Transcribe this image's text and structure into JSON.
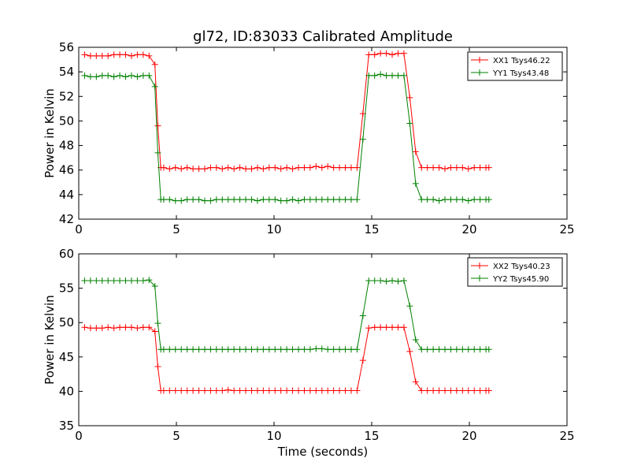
{
  "figure": {
    "title": "gl72, ID:83033 Calibrated Amplitude",
    "background": "#ffffff"
  },
  "chart_data": [
    {
      "type": "line",
      "title": "gl72, ID:83033 Calibrated Amplitude",
      "xlabel": "",
      "ylabel": "Power in Kelvin",
      "xlim": [
        0,
        25
      ],
      "ylim": [
        42,
        56
      ],
      "xticks": [
        "0",
        "5",
        "10",
        "15",
        "20",
        "25"
      ],
      "yticks": [
        "42",
        "44",
        "46",
        "48",
        "50",
        "52",
        "54",
        "56"
      ],
      "grid": false,
      "legend": "top-right",
      "x": [
        0.3,
        0.6,
        0.9,
        1.2,
        1.5,
        1.8,
        2.1,
        2.4,
        2.7,
        3.0,
        3.3,
        3.6,
        3.9,
        4.05,
        4.2,
        4.35,
        4.65,
        4.95,
        5.25,
        5.55,
        5.85,
        6.15,
        6.45,
        6.75,
        7.05,
        7.35,
        7.65,
        7.95,
        8.25,
        8.55,
        8.85,
        9.15,
        9.45,
        9.75,
        10.05,
        10.35,
        10.65,
        10.95,
        11.25,
        11.55,
        11.85,
        12.15,
        12.45,
        12.75,
        13.05,
        13.35,
        13.65,
        13.95,
        14.25,
        14.55,
        14.85,
        15.15,
        15.45,
        15.75,
        16.05,
        16.35,
        16.65,
        16.95,
        17.25,
        17.55,
        17.85,
        18.15,
        18.45,
        18.75,
        19.05,
        19.35,
        19.65,
        19.95,
        20.25,
        20.55,
        20.85,
        21.0
      ],
      "series": [
        {
          "name": "XX1 Tsys46.22",
          "color": "#ff0000",
          "values": [
            55.4,
            55.3,
            55.3,
            55.3,
            55.3,
            55.4,
            55.4,
            55.4,
            55.3,
            55.4,
            55.4,
            55.3,
            54.6,
            49.6,
            46.2,
            46.2,
            46.1,
            46.2,
            46.1,
            46.2,
            46.1,
            46.1,
            46.1,
            46.2,
            46.2,
            46.1,
            46.2,
            46.1,
            46.2,
            46.1,
            46.1,
            46.2,
            46.1,
            46.2,
            46.2,
            46.1,
            46.2,
            46.1,
            46.2,
            46.2,
            46.2,
            46.3,
            46.2,
            46.3,
            46.2,
            46.2,
            46.2,
            46.2,
            46.2,
            50.6,
            55.4,
            55.4,
            55.5,
            55.5,
            55.4,
            55.5,
            55.5,
            51.9,
            47.5,
            46.2,
            46.2,
            46.2,
            46.2,
            46.1,
            46.2,
            46.2,
            46.2,
            46.1,
            46.2,
            46.2,
            46.2,
            46.2
          ]
        },
        {
          "name": "YY1 Tsys43.48",
          "color": "#008000",
          "values": [
            53.7,
            53.6,
            53.6,
            53.7,
            53.7,
            53.6,
            53.7,
            53.6,
            53.7,
            53.6,
            53.7,
            53.7,
            52.8,
            47.4,
            43.6,
            43.6,
            43.6,
            43.5,
            43.5,
            43.6,
            43.6,
            43.6,
            43.5,
            43.5,
            43.6,
            43.6,
            43.6,
            43.6,
            43.6,
            43.6,
            43.6,
            43.5,
            43.6,
            43.6,
            43.6,
            43.5,
            43.5,
            43.6,
            43.5,
            43.6,
            43.6,
            43.6,
            43.6,
            43.6,
            43.6,
            43.6,
            43.6,
            43.6,
            43.6,
            48.5,
            53.7,
            53.7,
            53.8,
            53.7,
            53.7,
            53.7,
            53.7,
            49.8,
            44.9,
            43.6,
            43.6,
            43.6,
            43.5,
            43.6,
            43.6,
            43.6,
            43.6,
            43.5,
            43.6,
            43.6,
            43.6,
            43.6
          ]
        }
      ]
    },
    {
      "type": "line",
      "title": "",
      "xlabel": "Time (seconds)",
      "ylabel": "Power in Kelvin",
      "xlim": [
        0,
        25
      ],
      "ylim": [
        35,
        60
      ],
      "xticks": [
        "0",
        "5",
        "10",
        "15",
        "20",
        "25"
      ],
      "yticks": [
        "35",
        "40",
        "45",
        "50",
        "55",
        "60"
      ],
      "grid": false,
      "legend": "top-right",
      "x": [
        0.3,
        0.6,
        0.9,
        1.2,
        1.5,
        1.8,
        2.1,
        2.4,
        2.7,
        3.0,
        3.3,
        3.6,
        3.9,
        4.05,
        4.2,
        4.35,
        4.65,
        4.95,
        5.25,
        5.55,
        5.85,
        6.15,
        6.45,
        6.75,
        7.05,
        7.35,
        7.65,
        7.95,
        8.25,
        8.55,
        8.85,
        9.15,
        9.45,
        9.75,
        10.05,
        10.35,
        10.65,
        10.95,
        11.25,
        11.55,
        11.85,
        12.15,
        12.45,
        12.75,
        13.05,
        13.35,
        13.65,
        13.95,
        14.25,
        14.55,
        14.85,
        15.15,
        15.45,
        15.75,
        16.05,
        16.35,
        16.65,
        16.95,
        17.25,
        17.55,
        17.85,
        18.15,
        18.45,
        18.75,
        19.05,
        19.35,
        19.65,
        19.95,
        20.25,
        20.55,
        20.85,
        21.0
      ],
      "series": [
        {
          "name": "XX2 Tsys40.23",
          "color": "#ff0000",
          "values": [
            49.3,
            49.2,
            49.2,
            49.2,
            49.3,
            49.2,
            49.3,
            49.3,
            49.3,
            49.2,
            49.3,
            49.3,
            48.7,
            43.6,
            40.1,
            40.1,
            40.1,
            40.1,
            40.1,
            40.1,
            40.1,
            40.1,
            40.1,
            40.1,
            40.1,
            40.1,
            40.2,
            40.1,
            40.1,
            40.1,
            40.1,
            40.1,
            40.1,
            40.1,
            40.1,
            40.1,
            40.1,
            40.1,
            40.1,
            40.1,
            40.1,
            40.1,
            40.1,
            40.1,
            40.1,
            40.1,
            40.1,
            40.1,
            40.1,
            44.5,
            49.2,
            49.3,
            49.3,
            49.3,
            49.3,
            49.3,
            49.3,
            45.8,
            41.4,
            40.1,
            40.1,
            40.1,
            40.1,
            40.1,
            40.1,
            40.1,
            40.1,
            40.1,
            40.1,
            40.1,
            40.1,
            40.1
          ]
        },
        {
          "name": "YY2 Tsys45.90",
          "color": "#008000",
          "values": [
            56.1,
            56.1,
            56.1,
            56.1,
            56.1,
            56.1,
            56.1,
            56.1,
            56.1,
            56.1,
            56.1,
            56.2,
            55.3,
            49.9,
            46.1,
            46.1,
            46.1,
            46.1,
            46.1,
            46.1,
            46.1,
            46.1,
            46.1,
            46.1,
            46.1,
            46.1,
            46.1,
            46.1,
            46.1,
            46.1,
            46.1,
            46.1,
            46.1,
            46.1,
            46.1,
            46.1,
            46.1,
            46.1,
            46.1,
            46.1,
            46.1,
            46.2,
            46.2,
            46.1,
            46.1,
            46.1,
            46.1,
            46.1,
            46.1,
            51.0,
            56.1,
            56.1,
            56.1,
            56.0,
            56.1,
            56.0,
            56.1,
            52.4,
            47.5,
            46.1,
            46.1,
            46.1,
            46.1,
            46.1,
            46.1,
            46.1,
            46.1,
            46.1,
            46.1,
            46.1,
            46.1,
            46.1
          ]
        }
      ]
    }
  ]
}
